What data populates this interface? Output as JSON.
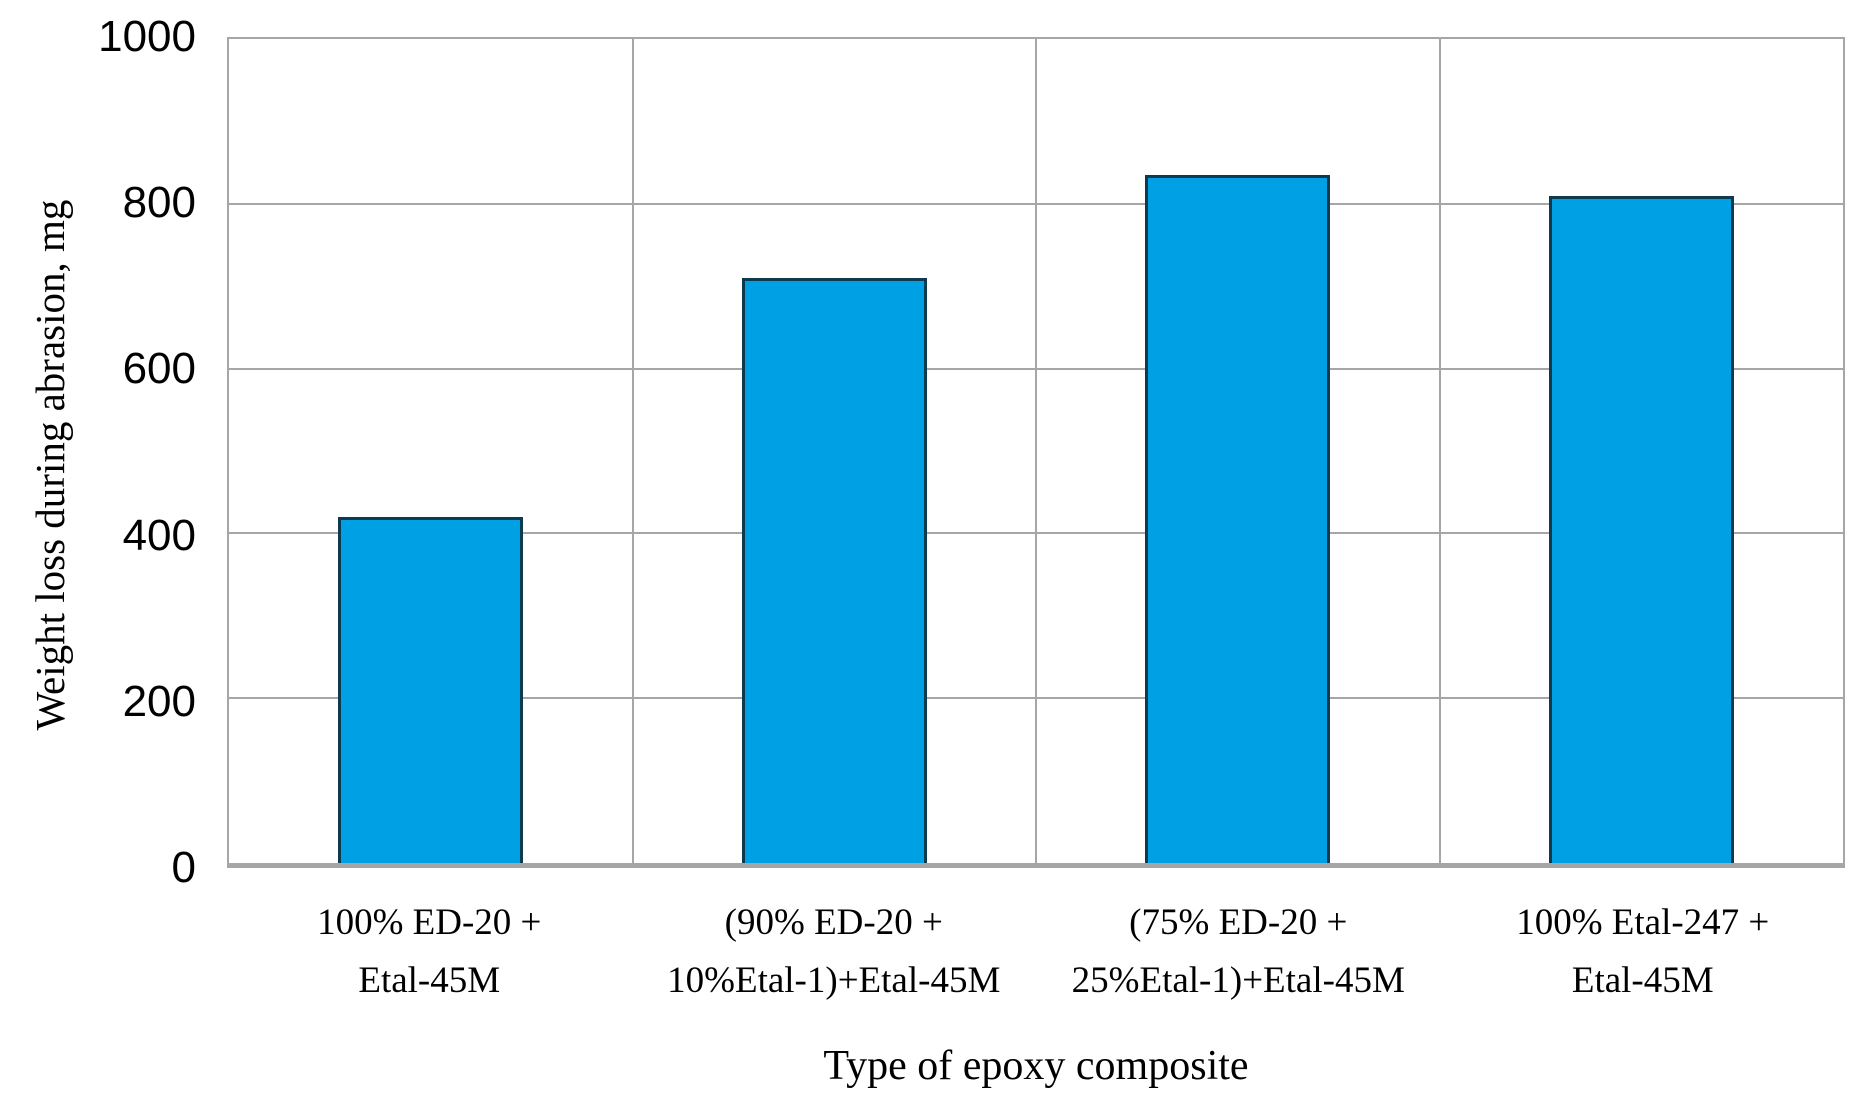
{
  "chart_data": {
    "type": "bar",
    "title": "",
    "xlabel": "Type of epoxy composite",
    "ylabel": "Weight loss during abrasion, mg",
    "categories": [
      "100% ED-20 +\nEtal-45M",
      "(90% ED-20 +\n10%Etal-1)+Etal-45M",
      "(75% ED-20 +\n25%Etal-1)+Etal-45M",
      "100% Etal-247 +\nEtal-45M"
    ],
    "values": [
      420,
      710,
      835,
      810
    ],
    "ylim": [
      0,
      1000
    ],
    "yticks": [
      0,
      200,
      400,
      600,
      800,
      1000
    ],
    "grid": {
      "horizontal": true,
      "vertical_category_separators": true
    },
    "legend": "none",
    "colors": {
      "bar_fill": "#00A1E4",
      "bar_border": "#0E3A50",
      "gridline": "#A6A6A6",
      "axis_line": "#A6A6A6",
      "text": "#000000",
      "background": "#FFFFFF"
    }
  }
}
